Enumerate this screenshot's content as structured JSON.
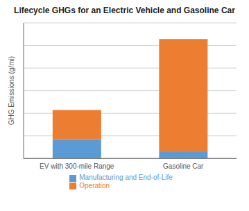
{
  "chart_data": {
    "type": "bar",
    "stacked": true,
    "title": "Lifecycle GHGs for an Electric Vehicle and Gasoline Car",
    "categories": [
      "EV with 300-mile Range",
      "Gasoline Car"
    ],
    "series": [
      {
        "name": "Manufacturing and End-of-Life",
        "color": "#5b9bd5",
        "values": [
          60,
          20
        ]
      },
      {
        "name": "Operation",
        "color": "#ed7d31",
        "values": [
          90,
          350
        ]
      }
    ],
    "ylabel": "GHG Emissions (g/mi)",
    "ylim": [
      0,
      420
    ],
    "yticks": [
      0,
      70,
      140,
      210,
      280,
      350,
      420
    ],
    "grid": true,
    "tick_labels": "x",
    "legend": "bottom"
  }
}
